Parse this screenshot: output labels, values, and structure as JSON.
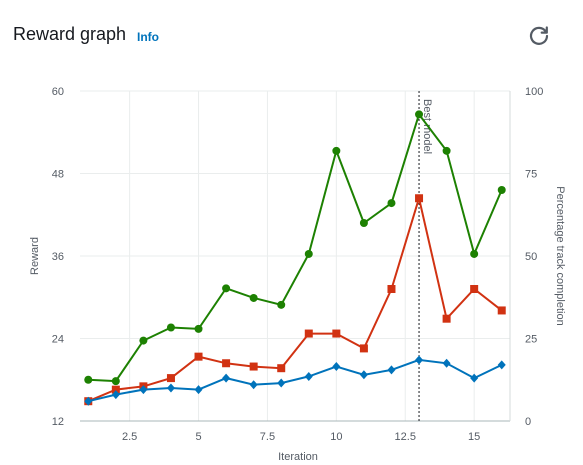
{
  "header": {
    "title": "Reward graph",
    "info_label": "Info",
    "refresh_icon": "refresh-icon"
  },
  "chart_data": {
    "type": "line",
    "xlabel": "Iteration",
    "ylabel": "Reward",
    "y2label": "Percentage track completion",
    "xlim": [
      0.7,
      16.3
    ],
    "ylim": [
      12,
      60
    ],
    "y2lim": [
      0,
      100
    ],
    "x_ticks": [
      2.5,
      5,
      7.5,
      10,
      12.5,
      15
    ],
    "x_tick_labels": [
      "2.5",
      "5",
      "7.5",
      "10",
      "12.5",
      "15"
    ],
    "y_ticks": [
      12,
      24,
      36,
      48,
      60
    ],
    "y_tick_labels": [
      "12",
      "24",
      "36",
      "48",
      "60"
    ],
    "y2_ticks": [
      0,
      25,
      50,
      75,
      100
    ],
    "y2_tick_labels": [
      "0",
      "25",
      "50",
      "75",
      "100"
    ],
    "grid": true,
    "x": [
      1,
      2,
      3,
      4,
      5,
      6,
      7,
      8,
      9,
      10,
      11,
      12,
      13,
      14,
      15,
      16
    ],
    "series": [
      {
        "axis": "left",
        "color": "#1d8102",
        "marker": "circle",
        "values": [
          18.0,
          17.8,
          23.7,
          25.6,
          25.4,
          31.3,
          29.9,
          28.9,
          36.3,
          51.3,
          40.8,
          43.7,
          56.6,
          51.3,
          36.3,
          45.6
        ]
      },
      {
        "axis": "right",
        "color": "#d13212",
        "marker": "square",
        "values": [
          6.0,
          9.5,
          10.5,
          13.0,
          19.5,
          17.5,
          16.5,
          16.0,
          26.5,
          26.5,
          22.0,
          40.0,
          67.5,
          31.0,
          40.0,
          33.5
        ]
      },
      {
        "axis": "right",
        "color": "#0073bb",
        "marker": "diamond",
        "values": [
          6.0,
          8.0,
          9.5,
          10.0,
          9.5,
          13.0,
          11.0,
          11.5,
          13.5,
          16.5,
          14.0,
          15.5,
          18.5,
          17.5,
          13.0,
          17.0
        ]
      }
    ],
    "annotations": [
      {
        "x": 13,
        "label": "Best model",
        "style": "dashed-vertical-line",
        "color": "#16191f"
      }
    ]
  }
}
